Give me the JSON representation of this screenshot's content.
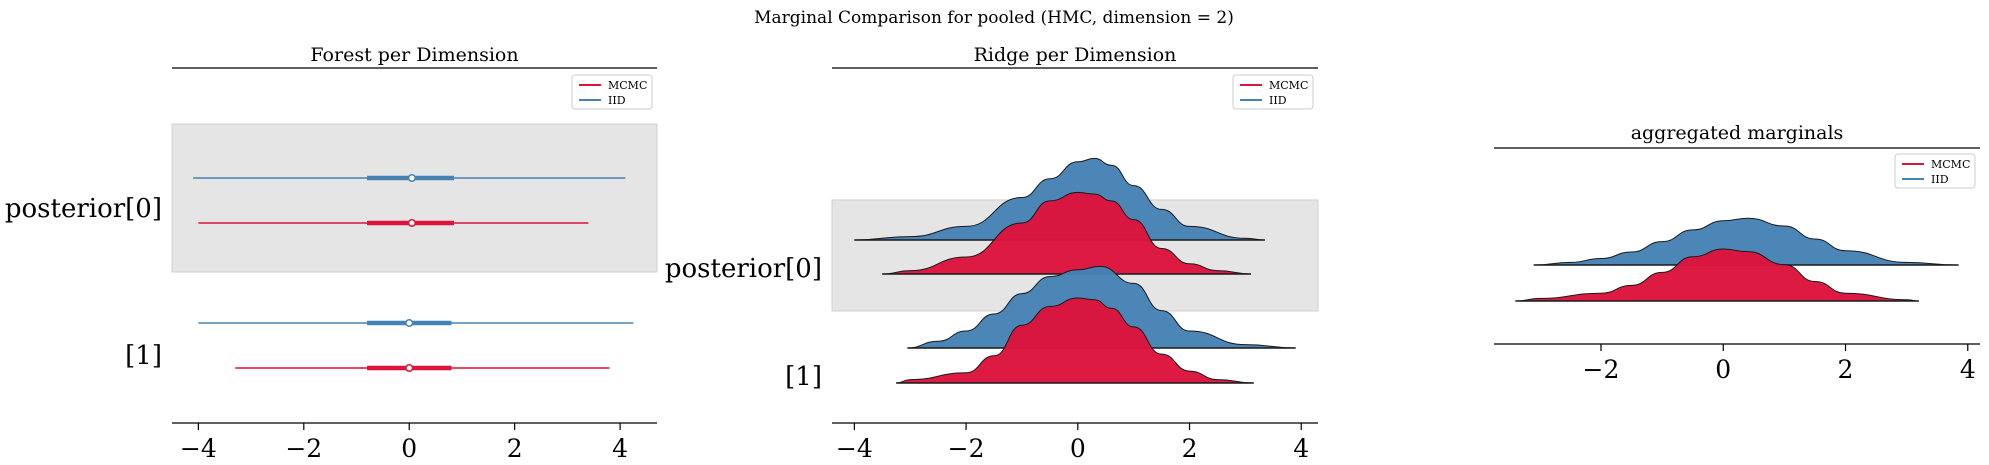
{
  "figure": {
    "suptitle": "Marginal Comparison for pooled (HMC, dimension = 2)",
    "colors": {
      "MCMC": "#dc143c",
      "IID": "#4682b4",
      "band": "#e5e5e5"
    }
  },
  "chart_data": [
    {
      "type": "forest",
      "title": "Forest per Dimension",
      "xlabel": "",
      "ylabel": "",
      "xlim": [
        -4.5,
        4.7
      ],
      "xticks": [
        -4,
        -2,
        0,
        2,
        4
      ],
      "xtick_labels": [
        "−4",
        "−2",
        "0",
        "2",
        "4"
      ],
      "ytick_labels": [
        "posterior[0]",
        "[1]"
      ],
      "legend": {
        "entries": [
          "MCMC",
          "IID"
        ],
        "placement": "top-right"
      },
      "series": [
        {
          "name": "IID",
          "dimension": 0,
          "hdi_low": -4.1,
          "hdi_high": 4.1,
          "iqr_low": -0.8,
          "iqr_high": 0.85,
          "median": 0.05
        },
        {
          "name": "MCMC",
          "dimension": 0,
          "hdi_low": -4.0,
          "hdi_high": 3.4,
          "iqr_low": -0.8,
          "iqr_high": 0.85,
          "median": 0.05
        },
        {
          "name": "IID",
          "dimension": 1,
          "hdi_low": -4.0,
          "hdi_high": 4.25,
          "iqr_low": -0.8,
          "iqr_high": 0.8,
          "median": 0.0
        },
        {
          "name": "MCMC",
          "dimension": 1,
          "hdi_low": -3.3,
          "hdi_high": 3.8,
          "iqr_low": -0.8,
          "iqr_high": 0.8,
          "median": 0.0
        }
      ]
    },
    {
      "type": "area",
      "subtype": "ridgeplot",
      "title": "Ridge per Dimension",
      "xlabel": "",
      "ylabel": "",
      "xlim": [
        -4.4,
        4.3
      ],
      "xticks": [
        -4,
        -2,
        0,
        2,
        4
      ],
      "xtick_labels": [
        "−4",
        "−2",
        "0",
        "2",
        "4"
      ],
      "ytick_labels": [
        "posterior[0]",
        "[1]"
      ],
      "legend": {
        "entries": [
          "MCMC",
          "IID"
        ],
        "placement": "top-right"
      },
      "series": [
        {
          "name": "IID",
          "dimension": 0,
          "x": [
            -4.0,
            -3.0,
            -2.0,
            -1.0,
            -0.5,
            0.0,
            0.3,
            0.6,
            1.0,
            1.5,
            2.0,
            3.0,
            3.35
          ],
          "density": [
            0.0,
            0.02,
            0.08,
            0.25,
            0.36,
            0.46,
            0.48,
            0.44,
            0.32,
            0.18,
            0.08,
            0.01,
            0.0
          ]
        },
        {
          "name": "MCMC",
          "dimension": 0,
          "x": [
            -3.5,
            -3.0,
            -2.0,
            -1.0,
            -0.5,
            0.0,
            0.3,
            0.6,
            1.0,
            1.5,
            2.0,
            2.5,
            3.1
          ],
          "density": [
            0.0,
            0.02,
            0.1,
            0.3,
            0.43,
            0.48,
            0.47,
            0.43,
            0.32,
            0.15,
            0.06,
            0.02,
            0.0
          ]
        },
        {
          "name": "IID",
          "dimension": 1,
          "x": [
            -3.05,
            -2.5,
            -2.0,
            -1.5,
            -1.0,
            -0.5,
            0.0,
            0.4,
            1.0,
            1.5,
            2.0,
            3.0,
            3.9
          ],
          "density": [
            0.0,
            0.04,
            0.1,
            0.2,
            0.32,
            0.42,
            0.46,
            0.48,
            0.38,
            0.22,
            0.1,
            0.02,
            0.0
          ]
        },
        {
          "name": "MCMC",
          "dimension": 1,
          "x": [
            -3.25,
            -3.0,
            -2.0,
            -1.5,
            -1.0,
            -0.5,
            0.0,
            0.3,
            0.6,
            1.0,
            1.5,
            2.0,
            2.5,
            3.15
          ],
          "density": [
            0.0,
            0.02,
            0.06,
            0.16,
            0.34,
            0.45,
            0.5,
            0.49,
            0.44,
            0.33,
            0.17,
            0.07,
            0.02,
            0.0
          ]
        }
      ]
    },
    {
      "type": "area",
      "subtype": "ridgeplot",
      "title": "aggregated marginals",
      "xlabel": "",
      "ylabel": "",
      "xlim": [
        -3.75,
        4.2
      ],
      "xticks": [
        -2,
        0,
        2,
        4
      ],
      "xtick_labels": [
        "−2",
        "0",
        "2",
        "4"
      ],
      "legend": {
        "entries": [
          "MCMC",
          "IID"
        ],
        "placement": "top-right"
      },
      "series": [
        {
          "name": "IID",
          "x": [
            -3.1,
            -2.5,
            -2.0,
            -1.5,
            -1.0,
            -0.5,
            0.0,
            0.4,
            1.0,
            1.5,
            2.0,
            3.0,
            3.85
          ],
          "density": [
            0.0,
            0.02,
            0.05,
            0.1,
            0.18,
            0.27,
            0.34,
            0.36,
            0.3,
            0.2,
            0.11,
            0.02,
            0.0
          ]
        },
        {
          "name": "MCMC",
          "x": [
            -3.4,
            -3.0,
            -2.0,
            -1.5,
            -1.0,
            -0.5,
            0.0,
            0.4,
            1.0,
            1.5,
            2.0,
            3.0,
            3.2
          ],
          "density": [
            0.0,
            0.02,
            0.06,
            0.12,
            0.22,
            0.34,
            0.4,
            0.38,
            0.28,
            0.15,
            0.06,
            0.01,
            0.0
          ]
        }
      ]
    }
  ]
}
